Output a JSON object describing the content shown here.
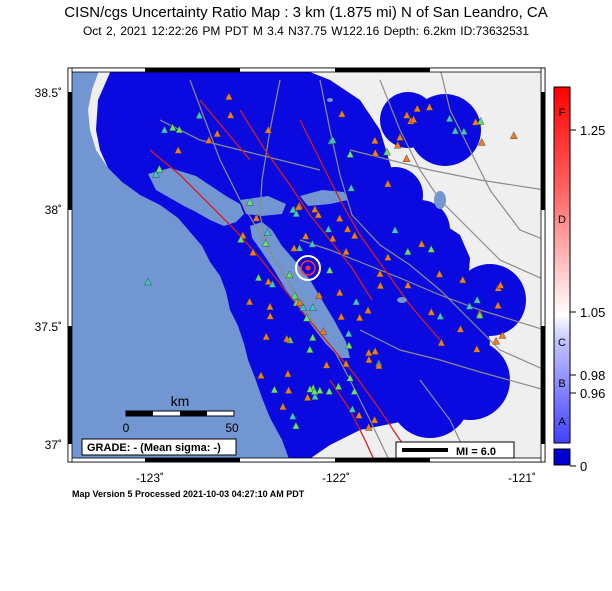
{
  "title": "CISN/cgs Uncertainty Ratio Map : 3 km (1.875 mi) N of San Leandro, CA",
  "subtitle": "Oct  2, 2021 12:22:26 PM PDT   M 3.4   N37.75 W122.16   Depth: 6.2km   ID:73632531",
  "axes": {
    "lon_labels": [
      "-123˚",
      "-122˚",
      "-121˚"
    ],
    "lat_labels": [
      "38.5˚",
      "38˚",
      "37.5˚",
      "37˚"
    ]
  },
  "scale_bar": {
    "unit": "km",
    "labels": [
      "0",
      "50"
    ]
  },
  "grade": "GRADE: - (Mean sigma: -)",
  "mi_legend": "MI = 6.0",
  "colorbar": {
    "letters": [
      "F",
      "D",
      "C",
      "B",
      "A"
    ],
    "values": [
      "1.25",
      "1.05",
      "0.98",
      "0.96",
      "0"
    ]
  },
  "footer": "Map Version 5 Processed 2021-10-03 04:27:10 AM PDT",
  "colors": {
    "ocean": "#7196D2",
    "land": "#EFEFEF",
    "uncertainty_low": "#0A0AE0",
    "fault": "#D02020",
    "roads": "#8C8C8C",
    "station_orange": "#F07C22",
    "station_green": "#66E070",
    "station_cyan": "#3FC4C8"
  },
  "epicenter": {
    "lat": 37.75,
    "lon": -122.16,
    "icon": "epicenter-star-icon"
  }
}
